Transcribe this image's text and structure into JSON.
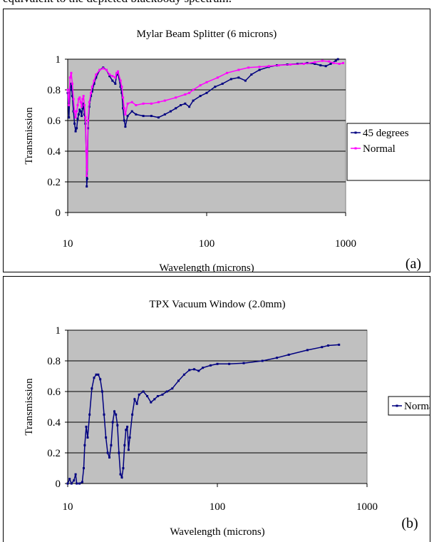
{
  "header_text": "equivalent to the depleted blackbody spectrum.",
  "chart_data": [
    {
      "type": "line",
      "panel_label": "(a)",
      "title": "Mylar Beam Splitter (6 microns)",
      "xlabel": "Wavelength (microns)",
      "ylabel": "Transmission",
      "xscale": "log",
      "xlim": [
        10,
        1000
      ],
      "ylim": [
        0,
        1
      ],
      "x_ticks": [
        "10",
        "100",
        "1000"
      ],
      "y_ticks": [
        "0",
        "0.2",
        "0.4",
        "0.6",
        "0.8",
        "1"
      ],
      "grid": true,
      "plot_background": "#c0c0c0",
      "legend_position": "right",
      "series": [
        {
          "name": "45 degrees",
          "color": "#000080",
          "points": [
            [
              10.0,
              0.78
            ],
            [
              10.2,
              0.62
            ],
            [
              10.4,
              0.8
            ],
            [
              10.6,
              0.84
            ],
            [
              10.8,
              0.76
            ],
            [
              11.0,
              0.66
            ],
            [
              11.2,
              0.58
            ],
            [
              11.4,
              0.53
            ],
            [
              11.6,
              0.55
            ],
            [
              11.8,
              0.61
            ],
            [
              12.0,
              0.64
            ],
            [
              12.2,
              0.67
            ],
            [
              12.4,
              0.66
            ],
            [
              12.6,
              0.63
            ],
            [
              12.8,
              0.68
            ],
            [
              13.0,
              0.71
            ],
            [
              13.2,
              0.64
            ],
            [
              13.4,
              0.58
            ],
            [
              13.6,
              0.4
            ],
            [
              13.7,
              0.17
            ],
            [
              13.8,
              0.22
            ],
            [
              14.0,
              0.55
            ],
            [
              14.3,
              0.69
            ],
            [
              14.7,
              0.76
            ],
            [
              15.0,
              0.79
            ],
            [
              15.5,
              0.84
            ],
            [
              16.0,
              0.88
            ],
            [
              17.0,
              0.93
            ],
            [
              18.0,
              0.945
            ],
            [
              19.0,
              0.93
            ],
            [
              20.0,
              0.89
            ],
            [
              21.0,
              0.86
            ],
            [
              22.0,
              0.84
            ],
            [
              22.5,
              0.9
            ],
            [
              23.0,
              0.91
            ],
            [
              24.0,
              0.82
            ],
            [
              24.5,
              0.78
            ],
            [
              25.0,
              0.68
            ],
            [
              25.5,
              0.6
            ],
            [
              26.0,
              0.56
            ],
            [
              27.0,
              0.63
            ],
            [
              29.0,
              0.66
            ],
            [
              31.0,
              0.64
            ],
            [
              35.0,
              0.63
            ],
            [
              40.0,
              0.63
            ],
            [
              45.0,
              0.62
            ],
            [
              50.0,
              0.64
            ],
            [
              55.0,
              0.66
            ],
            [
              60.0,
              0.68
            ],
            [
              65.0,
              0.7
            ],
            [
              70.0,
              0.71
            ],
            [
              75.0,
              0.69
            ],
            [
              80.0,
              0.73
            ],
            [
              90.0,
              0.76
            ],
            [
              100.0,
              0.78
            ],
            [
              115.0,
              0.82
            ],
            [
              130.0,
              0.84
            ],
            [
              150.0,
              0.87
            ],
            [
              170.0,
              0.88
            ],
            [
              190.0,
              0.86
            ],
            [
              210.0,
              0.9
            ],
            [
              240.0,
              0.93
            ],
            [
              280.0,
              0.95
            ],
            [
              320.0,
              0.96
            ],
            [
              380.0,
              0.965
            ],
            [
              450.0,
              0.97
            ],
            [
              530.0,
              0.975
            ],
            [
              600.0,
              0.97
            ],
            [
              660.0,
              0.96
            ],
            [
              720.0,
              0.955
            ],
            [
              780.0,
              0.97
            ],
            [
              850.0,
              0.99
            ],
            [
              880.0,
              1.0
            ]
          ]
        },
        {
          "name": "Normal",
          "color": "#ff00ff",
          "points": [
            [
              10.0,
              0.8
            ],
            [
              10.2,
              0.7
            ],
            [
              10.4,
              0.88
            ],
            [
              10.6,
              0.91
            ],
            [
              10.8,
              0.84
            ],
            [
              11.0,
              0.74
            ],
            [
              11.2,
              0.66
            ],
            [
              11.4,
              0.62
            ],
            [
              11.6,
              0.66
            ],
            [
              11.8,
              0.7
            ],
            [
              12.0,
              0.74
            ],
            [
              12.2,
              0.75
            ],
            [
              12.4,
              0.72
            ],
            [
              12.6,
              0.69
            ],
            [
              12.8,
              0.74
            ],
            [
              13.0,
              0.76
            ],
            [
              13.2,
              0.7
            ],
            [
              13.4,
              0.62
            ],
            [
              13.6,
              0.4
            ],
            [
              13.7,
              0.24
            ],
            [
              13.8,
              0.28
            ],
            [
              14.0,
              0.6
            ],
            [
              14.3,
              0.72
            ],
            [
              14.7,
              0.78
            ],
            [
              15.0,
              0.82
            ],
            [
              15.5,
              0.86
            ],
            [
              16.0,
              0.9
            ],
            [
              17.0,
              0.93
            ],
            [
              18.0,
              0.94
            ],
            [
              19.0,
              0.93
            ],
            [
              20.0,
              0.9
            ],
            [
              21.0,
              0.89
            ],
            [
              22.0,
              0.88
            ],
            [
              22.5,
              0.91
            ],
            [
              23.0,
              0.92
            ],
            [
              24.0,
              0.86
            ],
            [
              24.5,
              0.82
            ],
            [
              25.0,
              0.75
            ],
            [
              25.5,
              0.68
            ],
            [
              26.0,
              0.64
            ],
            [
              27.0,
              0.71
            ],
            [
              29.0,
              0.72
            ],
            [
              31.0,
              0.7
            ],
            [
              35.0,
              0.71
            ],
            [
              40.0,
              0.71
            ],
            [
              45.0,
              0.72
            ],
            [
              50.0,
              0.73
            ],
            [
              60.0,
              0.75
            ],
            [
              70.0,
              0.77
            ],
            [
              75.0,
              0.78
            ],
            [
              80.0,
              0.8
            ],
            [
              90.0,
              0.83
            ],
            [
              100.0,
              0.85
            ],
            [
              120.0,
              0.88
            ],
            [
              140.0,
              0.91
            ],
            [
              170.0,
              0.93
            ],
            [
              200.0,
              0.945
            ],
            [
              240.0,
              0.95
            ],
            [
              280.0,
              0.955
            ],
            [
              330.0,
              0.96
            ],
            [
              400.0,
              0.965
            ],
            [
              500.0,
              0.97
            ],
            [
              600.0,
              0.98
            ],
            [
              680.0,
              0.99
            ],
            [
              760.0,
              0.985
            ],
            [
              820.0,
              0.975
            ],
            [
              900.0,
              0.97
            ],
            [
              960.0,
              0.975
            ]
          ]
        }
      ]
    },
    {
      "type": "line",
      "panel_label": "(b)",
      "title": "TPX Vacuum Window (2.0mm)",
      "xlabel": "Wavelength (microns)",
      "ylabel": "Transmission",
      "xscale": "log",
      "xlim": [
        10,
        1000
      ],
      "ylim": [
        0,
        1
      ],
      "x_ticks": [
        "10",
        "100",
        "1000"
      ],
      "y_ticks": [
        "0",
        "0.2",
        "0.4",
        "0.6",
        "0.8",
        "1"
      ],
      "grid": true,
      "plot_background": "#c0c0c0",
      "legend_position": "right",
      "series": [
        {
          "name": "Normal",
          "color": "#000080",
          "points": [
            [
              10.0,
              0.0
            ],
            [
              10.3,
              0.03
            ],
            [
              10.6,
              0.0
            ],
            [
              11.0,
              0.02
            ],
            [
              11.3,
              0.06
            ],
            [
              11.5,
              0.0
            ],
            [
              12.0,
              0.0
            ],
            [
              12.5,
              0.01
            ],
            [
              12.8,
              0.1
            ],
            [
              13.0,
              0.25
            ],
            [
              13.3,
              0.37
            ],
            [
              13.6,
              0.3
            ],
            [
              14.0,
              0.45
            ],
            [
              14.5,
              0.62
            ],
            [
              15.0,
              0.69
            ],
            [
              15.5,
              0.71
            ],
            [
              16.0,
              0.71
            ],
            [
              16.5,
              0.68
            ],
            [
              17.0,
              0.6
            ],
            [
              17.5,
              0.45
            ],
            [
              18.0,
              0.3
            ],
            [
              18.5,
              0.2
            ],
            [
              19.0,
              0.17
            ],
            [
              19.5,
              0.25
            ],
            [
              20.0,
              0.4
            ],
            [
              20.5,
              0.47
            ],
            [
              21.0,
              0.45
            ],
            [
              21.5,
              0.38
            ],
            [
              22.0,
              0.2
            ],
            [
              22.5,
              0.06
            ],
            [
              23.0,
              0.04
            ],
            [
              23.5,
              0.1
            ],
            [
              24.0,
              0.25
            ],
            [
              24.5,
              0.35
            ],
            [
              25.0,
              0.37
            ],
            [
              25.5,
              0.22
            ],
            [
              26.0,
              0.3
            ],
            [
              27.0,
              0.45
            ],
            [
              28.0,
              0.55
            ],
            [
              29.0,
              0.52
            ],
            [
              30.0,
              0.58
            ],
            [
              32.0,
              0.6
            ],
            [
              34.0,
              0.57
            ],
            [
              36.0,
              0.53
            ],
            [
              38.0,
              0.55
            ],
            [
              40.0,
              0.57
            ],
            [
              43.0,
              0.58
            ],
            [
              46.0,
              0.6
            ],
            [
              50.0,
              0.62
            ],
            [
              55.0,
              0.67
            ],
            [
              60.0,
              0.71
            ],
            [
              65.0,
              0.74
            ],
            [
              70.0,
              0.745
            ],
            [
              75.0,
              0.735
            ],
            [
              80.0,
              0.755
            ],
            [
              90.0,
              0.77
            ],
            [
              100.0,
              0.78
            ],
            [
              120.0,
              0.78
            ],
            [
              150.0,
              0.785
            ],
            [
              200.0,
              0.8
            ],
            [
              250.0,
              0.82
            ],
            [
              300.0,
              0.84
            ],
            [
              400.0,
              0.87
            ],
            [
              500.0,
              0.89
            ],
            [
              550.0,
              0.9
            ],
            [
              650.0,
              0.905
            ]
          ]
        }
      ]
    }
  ]
}
